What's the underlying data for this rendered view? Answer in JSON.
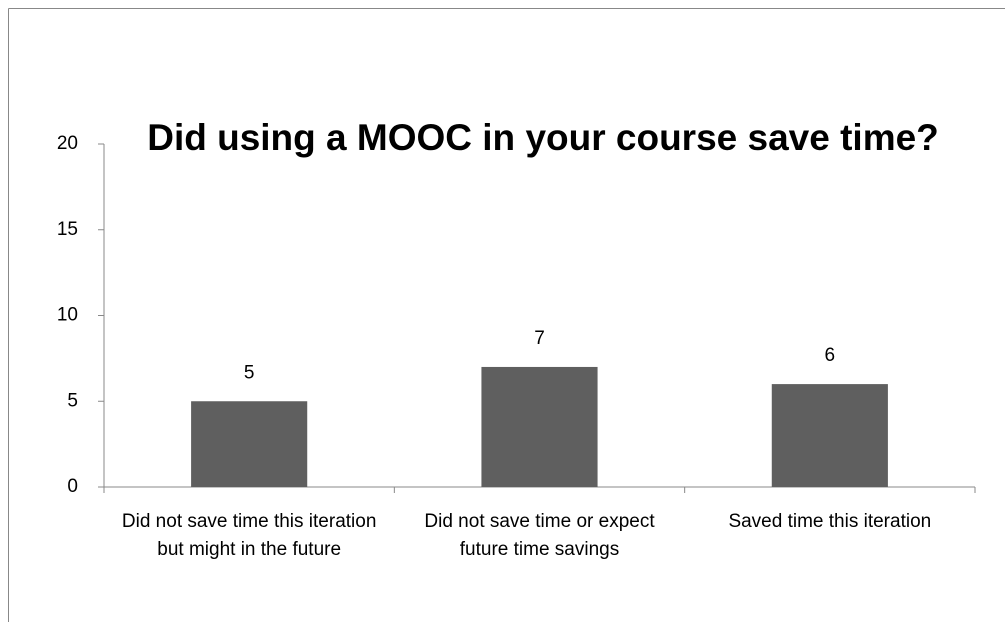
{
  "chart_data": {
    "type": "bar",
    "title": "Did using a MOOC in your course save time?",
    "categories": [
      "Did not save time this iteration but might in the future",
      "Did not save time or expect future time savings",
      "Saved time this iteration"
    ],
    "values": [
      5,
      7,
      6
    ],
    "color": "#5f5f5f",
    "ylim": [
      0,
      20
    ],
    "yticks": [
      0,
      5,
      10,
      15,
      20
    ]
  }
}
